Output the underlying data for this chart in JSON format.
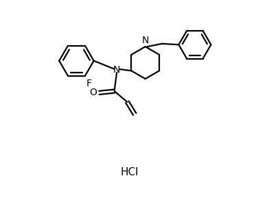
{
  "bg_color": "#ffffff",
  "line_color": "#000000",
  "text_color": "#000000",
  "linewidth": 1.6,
  "font_size": 10,
  "figsize": [
    3.89,
    2.92
  ],
  "dpi": 100,
  "hcl_label": "HCl",
  "F_label": "F",
  "N_amide_label": "N",
  "N_pip_label": "N",
  "O_label": "O",
  "xlim": [
    0,
    10
  ],
  "ylim": [
    -3.5,
    6.5
  ]
}
